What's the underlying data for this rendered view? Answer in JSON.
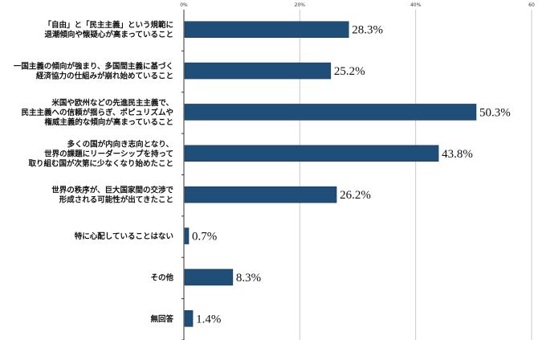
{
  "chart_data": {
    "type": "bar",
    "orientation": "horizontal",
    "categories": [
      [
        "「自由」と「民主主義」という規範に",
        "退潮傾向や懐疑心が高まっていること"
      ],
      [
        "一国主義の傾向が強まり、多国間主義に基づく",
        "経済協力の仕組みが崩れ始めていること"
      ],
      [
        "米国や欧州などの先進民主主義で、",
        "民主主義への信頼が揺らぎ、ポピュリズムや",
        "権威主義的な傾向が高まっていること"
      ],
      [
        "多くの国が内向き志向となり、",
        "世界の課題にリーダーシップを持って",
        "取り組む国が次第に少なくなり始めたこと"
      ],
      [
        "世界の秩序が、巨大国家間の交渉で",
        "形成される可能性が出てきたこと"
      ],
      [
        "特に心配していることはない"
      ],
      [
        "その他"
      ],
      [
        "無回答"
      ]
    ],
    "values": [
      28.3,
      25.2,
      50.3,
      43.8,
      26.2,
      0.7,
      8.3,
      1.4
    ],
    "value_labels": [
      "28.3%",
      "25.2%",
      "50.3%",
      "43.8%",
      "26.2%",
      "0.7%",
      "8.3%",
      "1.4%"
    ],
    "xlim": [
      0,
      60
    ],
    "ticks": [
      0,
      20,
      40,
      60
    ],
    "tick_labels": [
      "0%",
      "20%",
      "40%",
      "60"
    ],
    "grid": true,
    "colors": {
      "bar": "#1f4e79",
      "bar_edge": "#0e2a47",
      "grid": "#c8c8c8",
      "axis": "#333333"
    }
  }
}
